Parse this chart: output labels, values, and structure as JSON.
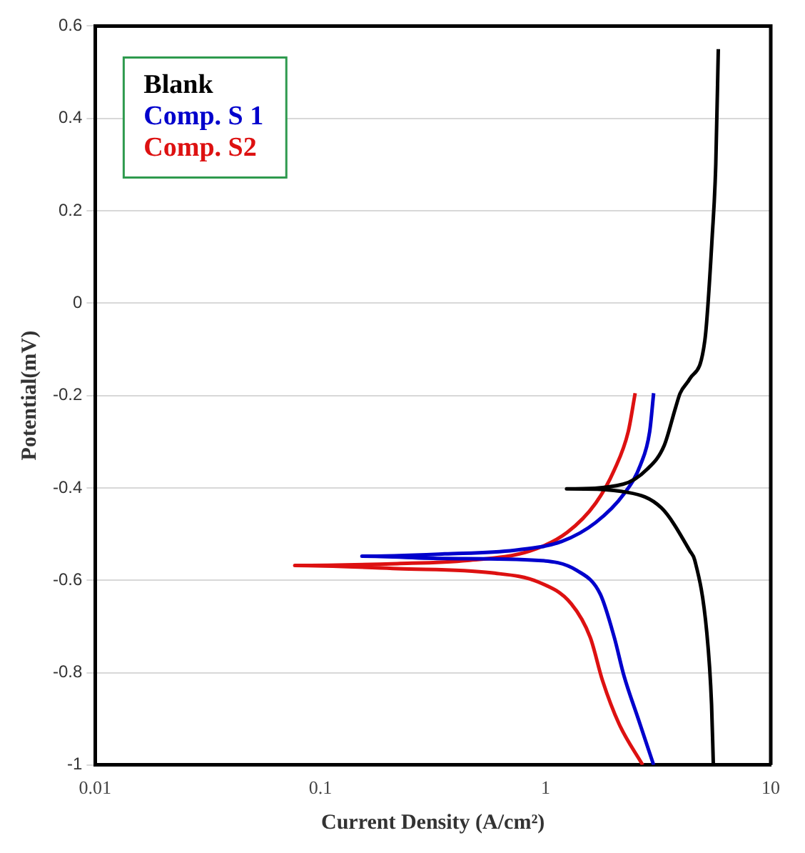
{
  "chart_data": {
    "type": "line",
    "xlabel": "Current Density (A/cm²)",
    "ylabel": "Potential(mV)",
    "log": "x",
    "xlim": [
      0.01,
      10
    ],
    "xticks": [
      0.01,
      0.1,
      1,
      10
    ],
    "ylim": [
      -1,
      0.6
    ],
    "yticks": [
      -1,
      -0.8,
      -0.6,
      -0.4,
      -0.2,
      0,
      0.2,
      0.4,
      0.6
    ],
    "grid": "y",
    "legend": "top left",
    "marker": "none",
    "line_style": "solid",
    "series": [
      {
        "name": "Blank",
        "color": "#000000",
        "x": [
          5.85,
          5.7,
          5.5,
          5.1,
          4.37,
          3.96,
          3.78,
          3.36,
          2.82,
          2.21,
          1.24,
          2.33,
          3.28,
          4.38,
          4.6,
          5.2,
          5.46,
          5.56
        ],
        "values": [
          0.55,
          0.3,
          0.147,
          -0.08,
          -0.164,
          -0.195,
          -0.226,
          -0.309,
          -0.36,
          -0.392,
          -0.402,
          -0.41,
          -0.444,
          -0.537,
          -0.557,
          -0.713,
          -0.869,
          -1
        ]
      },
      {
        "name": "Comp. S 1",
        "color": "#0000cc",
        "x": [
          3.02,
          2.9,
          2.64,
          2.23,
          1.67,
          1.18,
          0.73,
          0.356,
          0.153,
          0.356,
          0.93,
          1.38,
          1.75,
          2.02,
          2.23,
          2.58,
          3.02
        ],
        "values": [
          -0.195,
          -0.278,
          -0.35,
          -0.413,
          -0.475,
          -0.516,
          -0.535,
          -0.543,
          -0.548,
          -0.553,
          -0.557,
          -0.579,
          -0.63,
          -0.724,
          -0.807,
          -0.9,
          -1
        ]
      },
      {
        "name": "Comp. S2",
        "color": "#dd1111",
        "x": [
          2.5,
          2.33,
          2.02,
          1.67,
          1.25,
          0.85,
          0.45,
          0.22,
          0.077,
          0.22,
          0.575,
          0.93,
          1.3,
          1.58,
          1.79,
          2.12,
          2.7
        ],
        "values": [
          -0.195,
          -0.278,
          -0.361,
          -0.433,
          -0.496,
          -0.537,
          -0.557,
          -0.564,
          -0.568,
          -0.575,
          -0.584,
          -0.604,
          -0.651,
          -0.724,
          -0.817,
          -0.911,
          -1
        ]
      }
    ]
  }
}
